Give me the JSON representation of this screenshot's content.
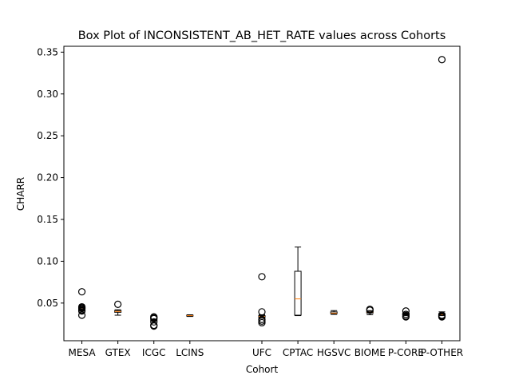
{
  "chart_data": {
    "type": "box",
    "title": "Box Plot of INCONSISTENT_AB_HET_RATE values across Cohorts",
    "xlabel": "Cohort",
    "ylabel": "CHARR",
    "ylim": [
      0.005,
      0.357
    ],
    "yticks": [
      "0.05",
      "0.10",
      "0.15",
      "0.20",
      "0.25",
      "0.30",
      "0.35"
    ],
    "categories": [
      "MESA",
      "GTEX",
      "ICGC",
      "LCINS",
      "",
      "UFC",
      "CPTAC",
      "HGSVC",
      "BIOME",
      "P-CORE",
      "P-OTHER"
    ],
    "boxes": [
      {
        "category": "MESA",
        "q1": 0.043,
        "median": 0.044,
        "q3": 0.045,
        "whisker_low": 0.042,
        "whisker_high": 0.046,
        "outliers": [
          0.0635,
          0.0455,
          0.0445,
          0.0435,
          0.0415,
          0.0405,
          0.0355
        ]
      },
      {
        "category": "GTEX",
        "q1": 0.039,
        "median": 0.04,
        "q3": 0.041,
        "whisker_low": 0.0355,
        "whisker_high": 0.042,
        "outliers": [
          0.0485
        ]
      },
      {
        "category": "ICGC",
        "q1": 0.029,
        "median": 0.0295,
        "q3": 0.03,
        "whisker_low": 0.0285,
        "whisker_high": 0.0305,
        "outliers": [
          0.0335,
          0.0325,
          0.0315,
          0.0275,
          0.0235,
          0.0225
        ]
      },
      {
        "category": "LCINS",
        "q1": 0.0345,
        "median": 0.035,
        "q3": 0.0355,
        "whisker_low": 0.034,
        "whisker_high": 0.036,
        "outliers": []
      },
      {
        "category": "UFC",
        "q1": 0.033,
        "median": 0.034,
        "q3": 0.035,
        "whisker_low": 0.032,
        "whisker_high": 0.036,
        "outliers": [
          0.0815,
          0.0395,
          0.0305,
          0.0285,
          0.0265
        ]
      },
      {
        "category": "CPTAC",
        "q1": 0.0355,
        "median": 0.055,
        "q3": 0.088,
        "whisker_low": 0.035,
        "whisker_high": 0.117,
        "outliers": []
      },
      {
        "category": "HGSVC",
        "q1": 0.0375,
        "median": 0.038,
        "q3": 0.0395,
        "whisker_low": 0.0365,
        "whisker_high": 0.041,
        "outliers": []
      },
      {
        "category": "BIOME",
        "q1": 0.038,
        "median": 0.039,
        "q3": 0.04,
        "whisker_low": 0.036,
        "whisker_high": 0.041,
        "outliers": [
          0.0425,
          0.0415
        ]
      },
      {
        "category": "P-CORE",
        "q1": 0.036,
        "median": 0.037,
        "q3": 0.038,
        "whisker_low": 0.035,
        "whisker_high": 0.039,
        "outliers": [
          0.0405,
          0.0365,
          0.0345,
          0.0335
        ]
      },
      {
        "category": "P-OTHER",
        "q1": 0.036,
        "median": 0.0365,
        "q3": 0.0375,
        "whisker_low": 0.035,
        "whisker_high": 0.0395,
        "outliers": [
          0.341,
          0.0355,
          0.0345,
          0.0335
        ]
      }
    ],
    "grid": false,
    "colors": {
      "box": "#000000",
      "median": "#ff7f0e",
      "outlier": "#000000"
    }
  }
}
